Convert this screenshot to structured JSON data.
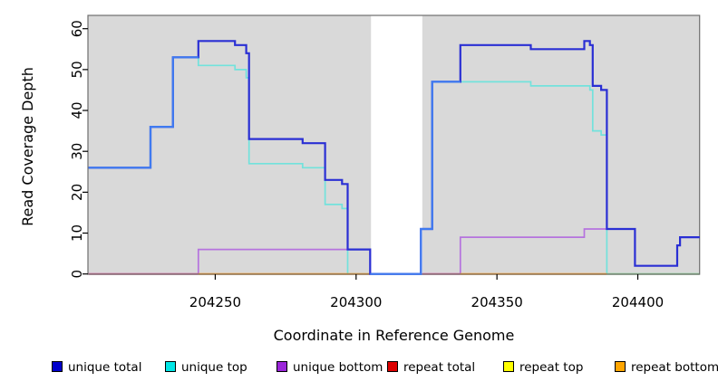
{
  "chart_data": {
    "type": "line",
    "subtype": "step-coverage-plot",
    "title": "",
    "xlabel": "Coordinate in Reference Genome",
    "ylabel": "Read Coverage Depth",
    "xlim": [
      204205,
      204422
    ],
    "ylim": [
      0,
      60
    ],
    "grid": false,
    "panel_bg": "#d9d9d9",
    "panel_border": "#6e6e6e",
    "x_ticks": [
      {
        "value": 204250,
        "label": "204250"
      },
      {
        "value": 204300,
        "label": "204300"
      },
      {
        "value": 204350,
        "label": "204350"
      },
      {
        "value": 204400,
        "label": "204400"
      }
    ],
    "y_ticks": [
      {
        "value": 0,
        "label": "0"
      },
      {
        "value": 10,
        "label": "10"
      },
      {
        "value": 20,
        "label": "20"
      },
      {
        "value": 30,
        "label": "30"
      },
      {
        "value": 40,
        "label": "40"
      },
      {
        "value": 50,
        "label": "50"
      },
      {
        "value": 60,
        "label": "60"
      }
    ],
    "no_data_gap": {
      "x_start": 204305,
      "x_end": 204323.5
    },
    "series": [
      {
        "name": "repeat total",
        "color": "#dd2222",
        "width": 1.4,
        "steps": [
          [
            204205,
            0
          ]
        ]
      },
      {
        "name": "repeat top",
        "color": "#f2f20a",
        "width": 1.4,
        "steps": [
          [
            204205,
            0
          ]
        ]
      },
      {
        "name": "repeat bottom",
        "color": "#ff9514",
        "width": 1.4,
        "steps": [
          [
            204205,
            0
          ]
        ]
      },
      {
        "name": "unique bottom",
        "color": "#b573de",
        "width": 1.7,
        "steps": [
          [
            204205,
            0
          ],
          [
            204244,
            6
          ],
          [
            204305,
            0
          ],
          [
            204337,
            9
          ],
          [
            204381,
            11
          ],
          [
            204399,
            2
          ],
          [
            204414,
            7
          ],
          [
            204415,
            9
          ]
        ]
      },
      {
        "name": "unique top",
        "color": "#72e2dc",
        "width": 1.7,
        "steps": [
          [
            204205,
            26
          ],
          [
            204227,
            36
          ],
          [
            204235,
            53
          ],
          [
            204244,
            51
          ],
          [
            204257,
            50
          ],
          [
            204261,
            48
          ],
          [
            204262,
            27
          ],
          [
            204281,
            26
          ],
          [
            204289,
            17
          ],
          [
            204295,
            16
          ],
          [
            204297,
            0
          ],
          [
            204323,
            11
          ],
          [
            204327,
            47
          ],
          [
            204362,
            46
          ],
          [
            204383,
            45
          ],
          [
            204384,
            35
          ],
          [
            204387,
            34
          ],
          [
            204389,
            0
          ]
        ]
      },
      {
        "name": "unique total",
        "color": "#2a2fd4",
        "light_color": "#3f7af0",
        "width": 2.2,
        "steps": [
          [
            204205,
            26
          ],
          [
            204227,
            36
          ],
          [
            204235,
            53
          ],
          [
            204244,
            57
          ],
          [
            204257,
            56
          ],
          [
            204261,
            54
          ],
          [
            204262,
            33
          ],
          [
            204281,
            32
          ],
          [
            204289,
            23
          ],
          [
            204295,
            22
          ],
          [
            204297,
            6
          ],
          [
            204305,
            0
          ],
          [
            204323,
            11
          ],
          [
            204327,
            47
          ],
          [
            204337,
            56
          ],
          [
            204362,
            55
          ],
          [
            204381,
            57
          ],
          [
            204383,
            56
          ],
          [
            204384,
            46
          ],
          [
            204387,
            45
          ],
          [
            204389,
            11
          ],
          [
            204399,
            2
          ],
          [
            204414,
            7
          ],
          [
            204415,
            9
          ]
        ]
      }
    ],
    "baseline_segments": [
      {
        "from": 204205,
        "to": 204244,
        "color": "#d4638f"
      },
      {
        "from": 204244,
        "to": 204305,
        "color": "#ff9514"
      },
      {
        "from": 204323.5,
        "to": 204337,
        "color": "#d4638f"
      },
      {
        "from": 204337,
        "to": 204389,
        "color": "#ff9514"
      },
      {
        "from": 204389,
        "to": 204422,
        "color": "#8fce8f"
      }
    ],
    "legend": [
      {
        "label": "unique total",
        "color": "#0000cc"
      },
      {
        "label": "unique top",
        "color": "#00e5e5"
      },
      {
        "label": "unique bottom",
        "color": "#9b26d9"
      },
      {
        "label": "repeat total",
        "color": "#dd0000"
      },
      {
        "label": "repeat top",
        "color": "#ffff00"
      },
      {
        "label": "repeat bottom",
        "color": "#ffa500"
      }
    ],
    "legend_position": "bottom"
  }
}
